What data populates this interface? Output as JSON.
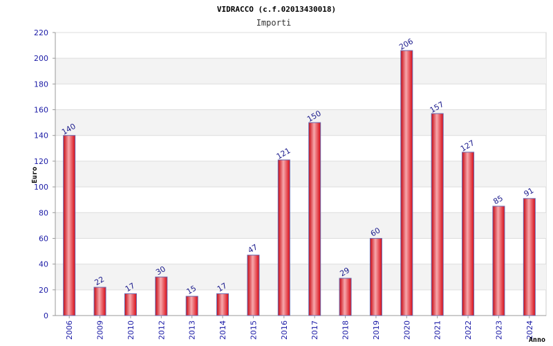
{
  "chart_data": {
    "type": "bar",
    "title": "VIDRACCO (c.f.02013430018)",
    "subtitle": "Importi",
    "xlabel": "Anno",
    "ylabel": "Euro",
    "ylim": [
      0,
      220
    ],
    "yticks": [
      0,
      20,
      40,
      60,
      80,
      100,
      120,
      140,
      160,
      180,
      200,
      220
    ],
    "grid": true,
    "categories": [
      "2006",
      "2009",
      "2010",
      "2012",
      "2013",
      "2014",
      "2015",
      "2016",
      "2017",
      "2018",
      "2019",
      "2020",
      "2021",
      "2022",
      "2023",
      "2024"
    ],
    "values": [
      140,
      22,
      17,
      30,
      15,
      17,
      47,
      121,
      150,
      29,
      60,
      206,
      157,
      127,
      85,
      91
    ],
    "bar_color": "#e8141e",
    "bar_highlight": "#f7a8ac",
    "bar_border": "#6a6ab0"
  }
}
